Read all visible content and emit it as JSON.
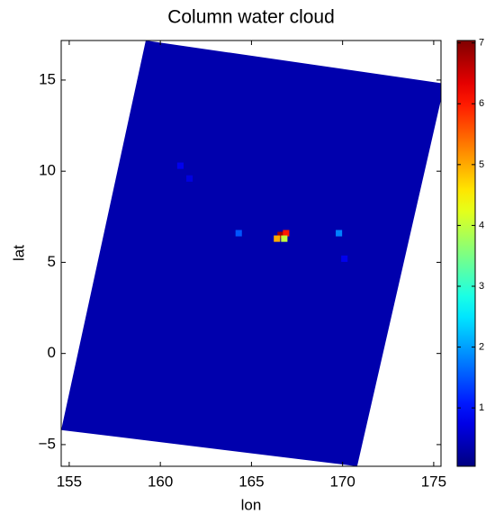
{
  "chart_data": {
    "type": "heatmap",
    "title": "Column water cloud",
    "x_label": "lon",
    "y_label": "lat",
    "xlim": [
      154.56,
      175.4
    ],
    "ylim": [
      -6.19,
      17.17
    ],
    "xticks": [
      155,
      160,
      165,
      170,
      175
    ],
    "yticks": [
      {
        "value": -5,
        "label": "−5"
      },
      0,
      5,
      10,
      15
    ],
    "colormap": "jet",
    "clim": [
      0.04,
      7.04
    ],
    "cticks": [
      1,
      2,
      3,
      4,
      5,
      6,
      7
    ],
    "swath": {
      "lon": [
        159.2,
        175.6,
        170.8,
        154.56
      ],
      "lat": [
        17.17,
        14.8,
        -6.19,
        -4.2
      ],
      "value": 0.35
    },
    "cells": {
      "lon": [
        166.6,
        166.9,
        166.4,
        166.8,
        169.8,
        164.3,
        161.1,
        161.6,
        170.1
      ],
      "lat": [
        6.5,
        6.6,
        6.3,
        6.3,
        6.6,
        6.6,
        10.3,
        9.6,
        5.2
      ],
      "values": [
        6.8,
        6.0,
        5.0,
        4.0,
        1.8,
        1.5,
        0.8,
        0.7,
        0.8
      ]
    }
  }
}
